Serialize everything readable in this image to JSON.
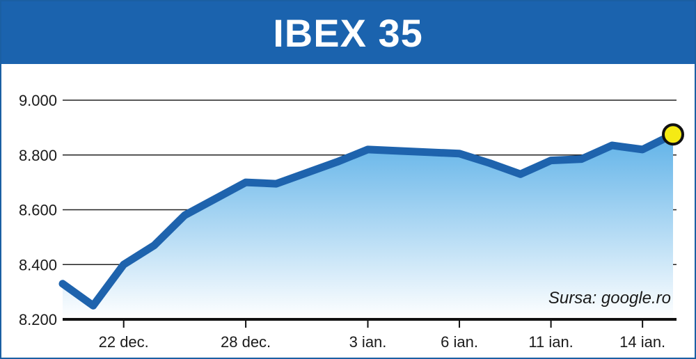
{
  "chart_data": {
    "type": "area",
    "title": "IBEX 35",
    "source": "Sursa: google.ro",
    "ylim": [
      8200,
      9000
    ],
    "yticks": [
      {
        "value": 9000,
        "label": "9.000"
      },
      {
        "value": 8800,
        "label": "8.800"
      },
      {
        "value": 8600,
        "label": "8.600"
      },
      {
        "value": 8400,
        "label": "8.400"
      },
      {
        "value": 8200,
        "label": "8.200"
      }
    ],
    "xtick_labels": [
      "22 dec.",
      "28 dec.",
      "3 ian.",
      "6 ian.",
      "11 ian.",
      "14 ian."
    ],
    "xtick_index": [
      2,
      6,
      10,
      13,
      16,
      19
    ],
    "values": [
      8330,
      8250,
      8400,
      8470,
      8580,
      8640,
      8700,
      8695,
      8735,
      8775,
      8820,
      8815,
      8810,
      8805,
      8770,
      8730,
      8780,
      8785,
      8835,
      8820,
      8875
    ],
    "grid": true,
    "colors": {
      "header": "#1b63ae",
      "line": "#1e63ad",
      "fill_top": "#5fb2e8",
      "fill_bottom": "#ffffff",
      "last_point": "#f5ea14"
    }
  }
}
